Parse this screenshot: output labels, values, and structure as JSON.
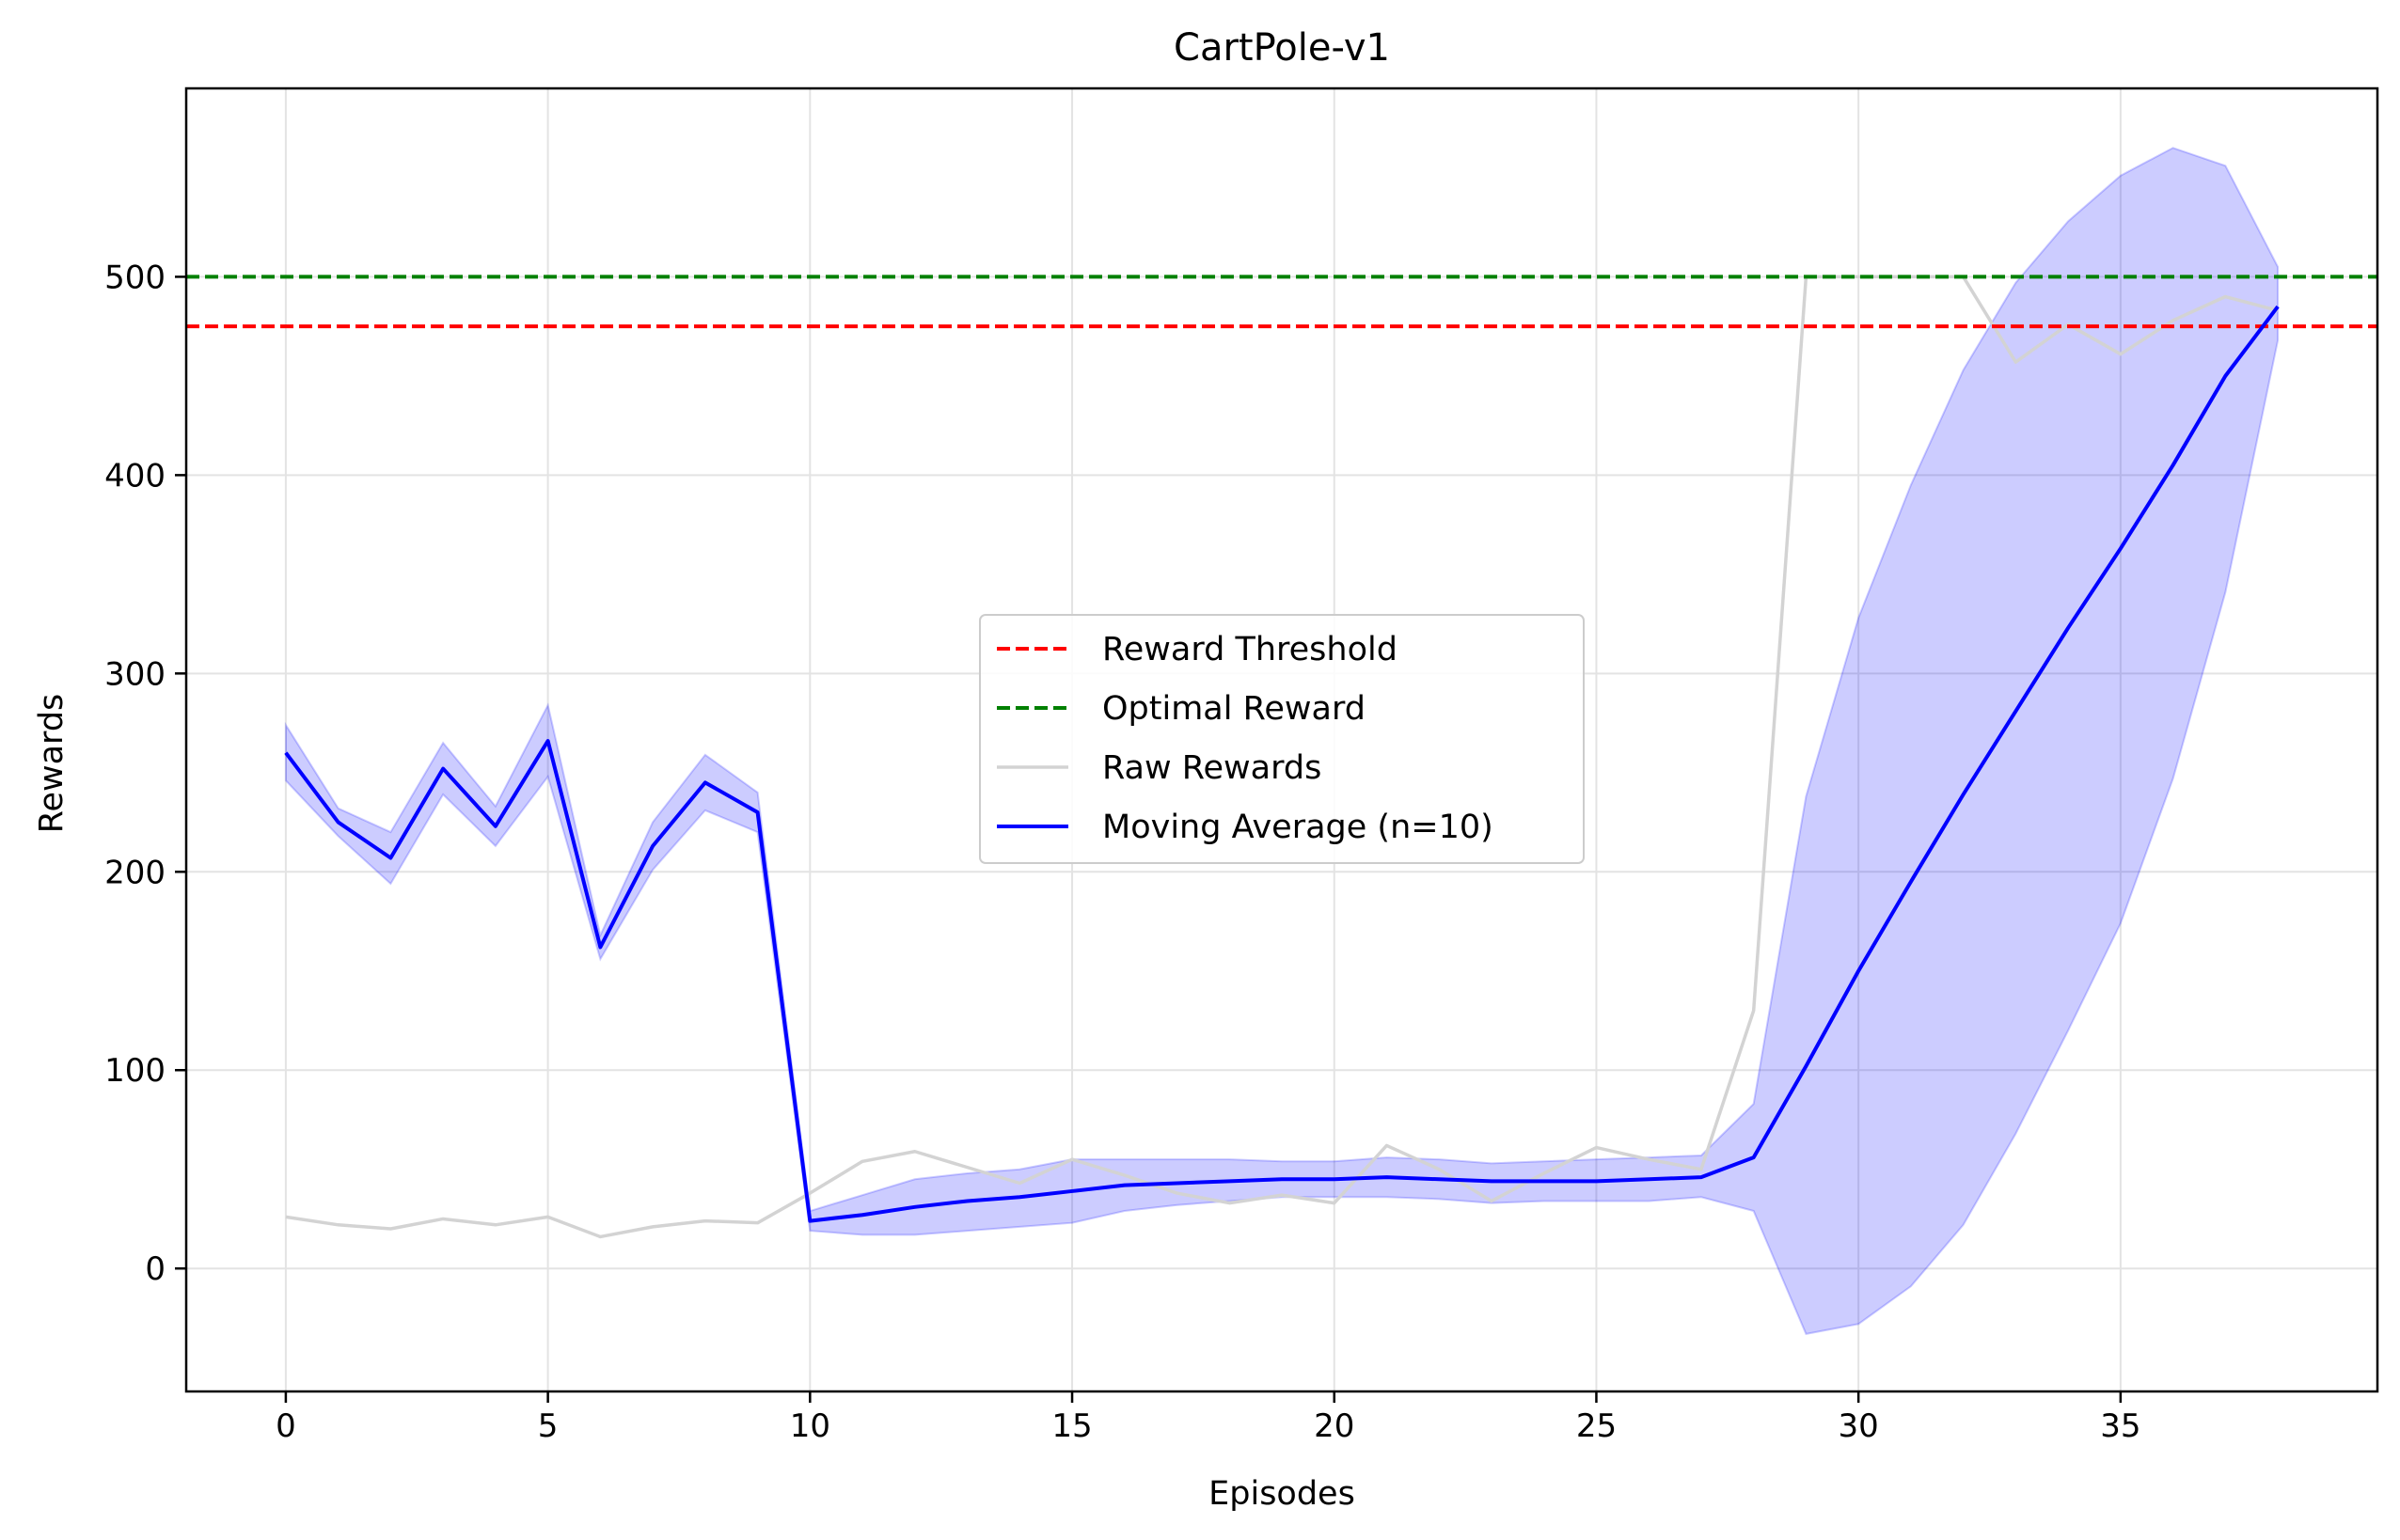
{
  "chart_data": {
    "type": "line",
    "title": "CartPole-v1",
    "xlabel": "Episodes",
    "ylabel": "Rewards",
    "xlim": [
      -1.9,
      39.9
    ],
    "ylim": [
      -62,
      595
    ],
    "x_ticks": [
      0,
      5,
      10,
      15,
      20,
      25,
      30,
      35
    ],
    "y_ticks": [
      0,
      100,
      200,
      300,
      400,
      500
    ],
    "grid": true,
    "legend_position": "center",
    "hlines": [
      {
        "name": "Reward Threshold",
        "y": 475,
        "color": "#ff0000",
        "style": "dashed"
      },
      {
        "name": "Optimal Reward",
        "y": 500,
        "color": "#008000",
        "style": "dashed"
      }
    ],
    "series": [
      {
        "name": "Raw Rewards",
        "color": "#d3d3d3",
        "x": [
          0,
          1,
          2,
          3,
          4,
          5,
          6,
          7,
          8,
          9,
          10,
          11,
          12,
          13,
          14,
          15,
          16,
          17,
          18,
          19,
          20,
          21,
          22,
          23,
          24,
          25,
          26,
          27,
          28,
          29,
          30,
          31,
          32,
          33,
          34,
          35,
          36,
          37,
          38
        ],
        "values": [
          26,
          22,
          20,
          25,
          22,
          26,
          16,
          21,
          24,
          23,
          38,
          54,
          59,
          51,
          43,
          55,
          47,
          38,
          33,
          37,
          33,
          62,
          50,
          34,
          48,
          61,
          55,
          50,
          130,
          500,
          500,
          500,
          500,
          457,
          476,
          461,
          478,
          490,
          483
        ]
      },
      {
        "name": "Moving Average (n=10)",
        "color": "#0000ff",
        "x": [
          0,
          1,
          2,
          3,
          4,
          5,
          6,
          7,
          8,
          9,
          10,
          11,
          12,
          13,
          14,
          15,
          16,
          17,
          18,
          19,
          20,
          21,
          22,
          23,
          24,
          25,
          26,
          27,
          28,
          29,
          30,
          31,
          32,
          33,
          34,
          35,
          36,
          37,
          38
        ],
        "values": [
          260,
          225,
          207,
          252,
          223,
          266,
          162,
          213,
          245,
          230,
          24,
          27,
          31,
          34,
          36,
          39,
          42,
          43,
          44,
          45,
          45,
          46,
          45,
          44,
          44,
          44,
          45,
          46,
          56,
          102,
          150,
          195,
          239,
          281,
          323,
          363,
          405,
          450,
          485
        ],
        "band_upper": [
          274,
          232,
          220,
          265,
          233,
          284,
          168,
          225,
          259,
          240,
          29,
          37,
          45,
          48,
          50,
          55,
          55,
          55,
          55,
          54,
          54,
          56,
          55,
          53,
          54,
          55,
          56,
          57,
          83,
          238,
          328,
          395,
          453,
          497,
          528,
          551,
          565,
          556,
          505
        ],
        "band_lower": [
          246,
          218,
          194,
          239,
          213,
          248,
          156,
          201,
          231,
          220,
          19,
          17,
          17,
          19,
          21,
          23,
          29,
          32,
          34,
          36,
          36,
          36,
          35,
          33,
          34,
          34,
          34,
          36,
          29,
          -33,
          -28,
          -9,
          22,
          68,
          120,
          174,
          247,
          341,
          468
        ]
      }
    ]
  }
}
